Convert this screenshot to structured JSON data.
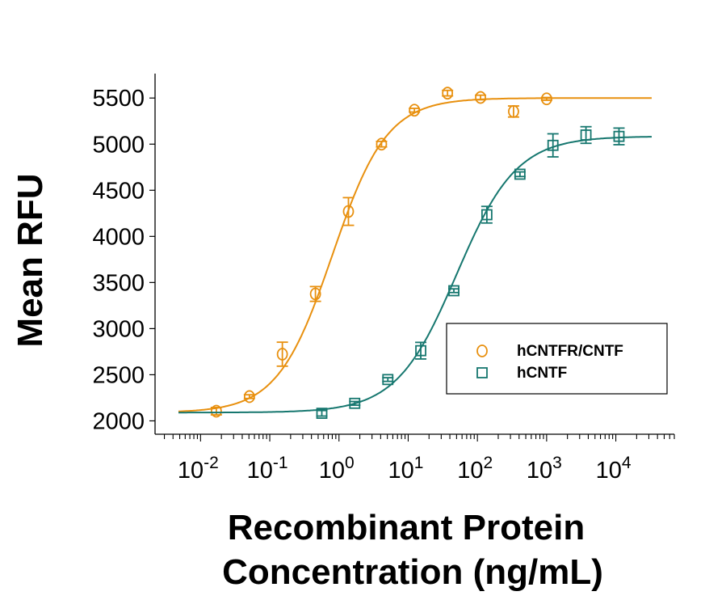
{
  "chart_data": {
    "type": "scatter",
    "title": "",
    "xlabel_line1": "Recombinant Protein",
    "xlabel_line2": "Concentration (ng/mL)",
    "ylabel": "Mean RFU",
    "x_scale": "log10",
    "xlim": [
      0.0022,
      70000
    ],
    "ylim": [
      1855,
      5765
    ],
    "x_ticks": [
      0.01,
      0.1,
      1,
      10,
      100,
      1000,
      10000
    ],
    "x_tick_labels": [
      {
        "base": "10",
        "exp": "-2"
      },
      {
        "base": "10",
        "exp": "-1"
      },
      {
        "base": "10",
        "exp": "0"
      },
      {
        "base": "10",
        "exp": "1"
      },
      {
        "base": "10",
        "exp": "2"
      },
      {
        "base": "10",
        "exp": "3"
      },
      {
        "base": "10",
        "exp": "4"
      }
    ],
    "y_ticks": [
      2000,
      2500,
      3000,
      3500,
      4000,
      4500,
      5000,
      5500
    ],
    "y_tick_labels": [
      "2000",
      "2500",
      "3000",
      "3500",
      "4000",
      "4500",
      "5000",
      "5500"
    ],
    "grid": false,
    "legend_placement": "lower-right",
    "series": [
      {
        "name": "hCNTFR/CNTF",
        "marker": "circle",
        "color": "#E8900F",
        "x": [
          0.0169,
          0.0508,
          0.152,
          0.457,
          1.37,
          4.12,
          12.3,
          37.0,
          111,
          333,
          1000
        ],
        "y": [
          2105,
          2263,
          2723,
          3376,
          4270,
          5000,
          5368,
          5553,
          5506,
          5354,
          5491
        ],
        "error": [
          40,
          20,
          130,
          80,
          150,
          30,
          20,
          30,
          25,
          60,
          15
        ],
        "fit": {
          "model": "4PL",
          "bottom": 2090,
          "top": 5500,
          "ec50": 0.8,
          "hill": 1.1,
          "x_range": [
            0.0048,
            33000
          ]
        }
      },
      {
        "name": "hCNTF",
        "marker": "square",
        "color": "#16776F",
        "x": [
          0.565,
          1.69,
          5.08,
          15.2,
          45.7,
          137,
          412,
          1235,
          3704,
          11111
        ],
        "y": [
          2082,
          2190,
          2448,
          2761,
          3411,
          4235,
          4674,
          4987,
          5099,
          5084
        ],
        "error": [
          30,
          20,
          20,
          90,
          20,
          90,
          25,
          125,
          90,
          90
        ],
        "fit": {
          "model": "4PL",
          "bottom": 2090,
          "top": 5085,
          "ec50": 50,
          "hill": 1.0,
          "x_range": [
            0.0048,
            33000
          ]
        }
      }
    ]
  }
}
